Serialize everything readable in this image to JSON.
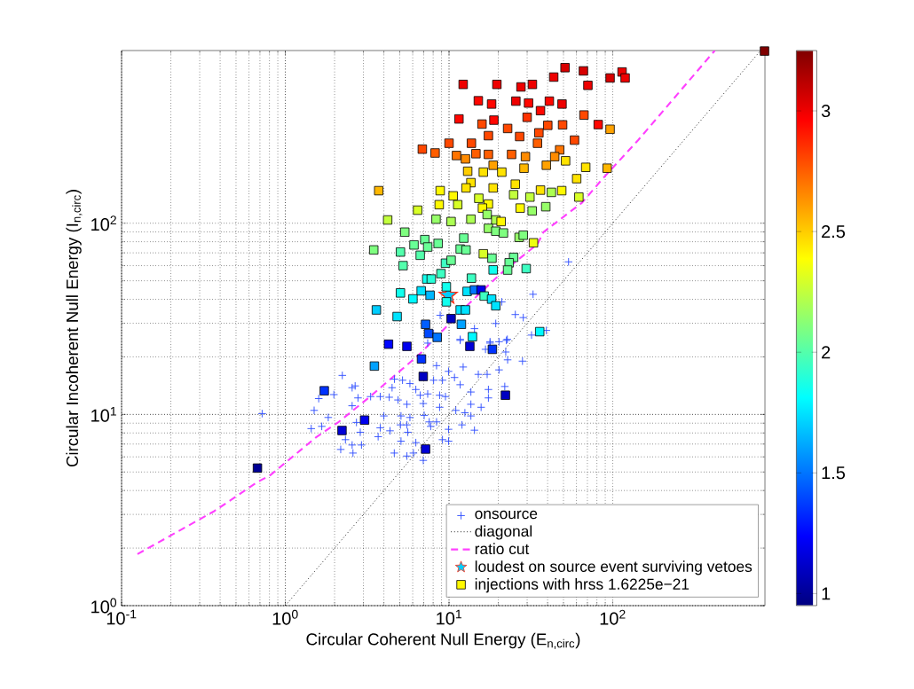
{
  "chart_data": {
    "type": "scatter",
    "xlabel": "Circular Coherent Null Energy (E$_{n,circ}$)",
    "ylabel": "Circular Incoherent Null Energy (I$_{n,circ}$)",
    "log": "xy",
    "xlim": [
      0.1,
      850
    ],
    "ylim": [
      1,
      800
    ],
    "xticks": [
      {
        "value": 0.1,
        "label": "10$^{-1}$"
      },
      {
        "value": 1,
        "label": "10$^{0}$"
      },
      {
        "value": 10,
        "label": "10$^{1}$"
      },
      {
        "value": 100,
        "label": "10$^{2}$"
      }
    ],
    "yticks": [
      {
        "value": 1,
        "label": "10$^{0}$"
      },
      {
        "value": 10,
        "label": "10$^{1}$"
      },
      {
        "value": 100,
        "label": "10$^{2}$"
      }
    ],
    "clim": [
      0.95,
      3.25
    ],
    "cticks": [
      1,
      1.5,
      2,
      2.5,
      3
    ],
    "grid": true,
    "legend": "bottom right",
    "series": [
      {
        "name": "onsource",
        "marker": "cross",
        "color": "#3050ff",
        "x": [
          2.23,
          2.67,
          2.56,
          1.98,
          1.6,
          2.78,
          1.5,
          2.56,
          3.32,
          3.8,
          4.31,
          1.83,
          1.44,
          1.67,
          0.722,
          2.72,
          2.87,
          2.33,
          2.56,
          2.18,
          2.59,
          2.92,
          3.69,
          3.8,
          4.0,
          4.36,
          4.63,
          5.09,
          4.49,
          4.64,
          5.2,
          5.77,
          6.27,
          4.88,
          5.53,
          5.09,
          5.77,
          5.05,
          5.53,
          5.6,
          6.27,
          6.06,
          7.05,
          6.96,
          6.67,
          7.41,
          8.05,
          9.12,
          8.39,
          9.93,
          10.8,
          11.7,
          8.76,
          9.51,
          8.76,
          8.39,
          7.57,
          7.73,
          9.93,
          9.12,
          9.93,
          11.0,
          12.5,
          13.6,
          12.0,
          13.6,
          15.7,
          13.6,
          17.4,
          17.4,
          15.1,
          17.1,
          21.9,
          28.1,
          22.8,
          20.2,
          17.8,
          22.4,
          11.7,
          12.2,
          6.96,
          14.3,
          5.53,
          53.7,
          32.6,
          21.0,
          25.4,
          28.4,
          19.3,
          14.3,
          11.7,
          17.8,
          22.7,
          31.9,
          39.3,
          22.2,
          8.83,
          8.05,
          7.41,
          16.7,
          20.2
        ],
        "values": [
          16.0,
          14.1,
          13.8,
          12.7,
          12.1,
          12.2,
          10.5,
          11.1,
          12.4,
          12.4,
          12.3,
          9.64,
          8.43,
          8.66,
          10.1,
          9.08,
          8.07,
          7.38,
          6.92,
          6.56,
          6.28,
          6.92,
          7.65,
          8.51,
          9.82,
          8.21,
          6.28,
          7.25,
          13.8,
          15.3,
          15.1,
          14.5,
          13.5,
          11.9,
          11.3,
          9.82,
          9.64,
          8.82,
          8.82,
          8.07,
          7.12,
          6.28,
          9.89,
          11.4,
          12.6,
          12.8,
          15.1,
          15.1,
          18.0,
          16.8,
          15.6,
          14.3,
          12.6,
          12.4,
          10.9,
          9.14,
          9.14,
          8.66,
          8.36,
          7.38,
          7.25,
          10.5,
          10.2,
          9.82,
          8.82,
          11.3,
          10.9,
          13.1,
          13.5,
          12.2,
          16.2,
          16.2,
          14.0,
          19.0,
          19.3,
          24.0,
          23.6,
          24.4,
          24.4,
          17.7,
          5.75,
          8.27,
          6.06,
          62.8,
          42.5,
          38.8,
          33.3,
          32.1,
          29.9,
          28.1,
          24.7,
          24.0,
          24.7,
          26.0,
          27.5,
          21.2,
          33.0,
          26.5,
          23.6,
          21.9,
          17.1
        ]
      },
      {
        "name": "diagonal",
        "type": "line",
        "line_style": "dotted",
        "color": "#000000",
        "x": [
          1,
          800
        ],
        "values": [
          1,
          800
        ]
      },
      {
        "name": "ratio cut",
        "type": "line",
        "line_style": "dashed",
        "color": "#ff40ff",
        "x": [
          0.125,
          0.368,
          0.673,
          0.81,
          1.55,
          2.12,
          3.22,
          5.77,
          6.82,
          12.2,
          20.2,
          34.7,
          37.7,
          64.9,
          86.8,
          143,
          420
        ],
        "values": [
          1.86,
          3.12,
          4.42,
          4.81,
          7.62,
          9.14,
          12.2,
          18.7,
          21.2,
          35.5,
          53.5,
          77.8,
          89.8,
          128,
          171,
          272,
          800
        ]
      },
      {
        "name": "loudest on source event surviving vetoes",
        "marker": "star",
        "color": "#ff2a10",
        "x": [
          9.88
        ],
        "values": [
          42.0
        ],
        "cvalues": [
          1.7
        ]
      },
      {
        "name": "injections with hrss 1.6225e−21",
        "marker": "square",
        "color": "#000000",
        "x": [
          48.8,
          12.2,
          19.6,
          27.5,
          32.3,
          51.1,
          43.6,
          66.2,
          114,
          96.3,
          119,
          70.5,
          15.1,
          18.2,
          25.6,
          30.6,
          41.0,
          49.0,
          11.5,
          18.8,
          30.0,
          36.2,
          66.7,
          81.5,
          96.3,
          6.87,
          10.0,
          15.9,
          22.8,
          40.1,
          49.4,
          8.22,
          13.7,
          17.4,
          27.0,
          35.4,
          58.4,
          11.1,
          14.6,
          17.4,
          24.1,
          34.7,
          47.4,
          12.6,
          18.6,
          29.3,
          44.2,
          3.72,
          13.0,
          16.2,
          21.0,
          28.7,
          39.3,
          51.5,
          68.4,
          92.4,
          60.2,
          13.6,
          18.6,
          12.7,
          25.4,
          36.2,
          8.83,
          10.6,
          24.8,
          31.2,
          42.2,
          62.1,
          8.71,
          11.3,
          15.2,
          17.4,
          6.43,
          16.0,
          27.2,
          32.2,
          39.0,
          4.22,
          8.33,
          10.3,
          13.6,
          17.1,
          19.3,
          20.8,
          5.37,
          7.11,
          17.4,
          19.3,
          21.5,
          12.3,
          26.8,
          32.8,
          6.11,
          3.47,
          5.05,
          6.67,
          7.41,
          8.58,
          11.7,
          12.7,
          16.2,
          18.3,
          24.8,
          23.3,
          28.4,
          5.24,
          9.51,
          10.3,
          22.8,
          29.6,
          18.6,
          8.93,
          7.31,
          7.79,
          13.7,
          9.63,
          5.05,
          6.76,
          7.66,
          6.02,
          9.63,
          12.9,
          14.3,
          15.7,
          16.4,
          18.2,
          19.3,
          3.6,
          4.82,
          11.7,
          12.6,
          10.3,
          7.19,
          11.9,
          7.5,
          8.47,
          13.9,
          35.8,
          4.27,
          5.53,
          13.4,
          18.4,
          6.79,
          3.5,
          6.96,
          22.1,
          1.73,
          3.05,
          2.22,
          7.19,
          0.676,
          845
        ],
        "values": [
          148,
          532,
          532,
          516,
          532,
          651,
          581,
          626,
          618,
          575,
          575,
          526,
          437,
          420,
          435,
          425,
          435,
          420,
          351,
          346,
          358,
          388,
          368,
          328,
          310,
          244,
          262,
          330,
          313,
          325,
          327,
          233,
          262,
          287,
          284,
          297,
          272,
          226,
          231,
          229,
          229,
          262,
          242,
          217,
          201,
          223,
          223,
          148,
          187,
          185,
          185,
          194,
          201,
          212,
          196,
          194,
          171,
          163,
          153,
          153,
          160,
          149,
          148,
          139,
          141,
          137,
          145,
          137,
          125,
          125,
          135,
          126,
          117,
          120,
          120,
          116,
          122,
          104,
          105,
          102,
          105,
          111,
          104,
          102,
          89.8,
          82.1,
          94.0,
          90.8,
          88.9,
          83.6,
          84.3,
          79.0,
          77.0,
          72.5,
          70.7,
          68.0,
          75.1,
          78.4,
          73.3,
          72.5,
          69.2,
          65.6,
          66.3,
          62.1,
          86.6,
          60.0,
          61.8,
          64.0,
          56.9,
          57.9,
          57.0,
          54.5,
          51.1,
          51.1,
          51.6,
          46.5,
          43.2,
          44.3,
          42.0,
          40.2,
          38.8,
          44.0,
          44.8,
          44.8,
          41.6,
          40.1,
          37.0,
          35.2,
          32.5,
          35.2,
          35.2,
          31.7,
          29.6,
          29.6,
          26.5,
          25.3,
          25.5,
          27.1,
          23.3,
          22.7,
          22.7,
          21.9,
          19.5,
          17.9,
          15.8,
          12.6,
          13.3,
          9.34,
          8.24,
          6.59,
          5.24,
          795
        ],
        "cvalues": [
          2.4,
          3.0,
          3.0,
          3.0,
          3.0,
          3.05,
          3.0,
          3.05,
          3.0,
          3.05,
          3.0,
          3.0,
          2.95,
          2.95,
          3.0,
          2.95,
          2.95,
          3.0,
          2.95,
          2.95,
          2.85,
          2.95,
          2.8,
          2.95,
          2.6,
          2.8,
          2.8,
          2.8,
          2.8,
          2.8,
          2.8,
          2.75,
          2.8,
          2.8,
          2.8,
          2.8,
          2.8,
          2.7,
          2.75,
          2.75,
          2.75,
          2.75,
          2.7,
          2.65,
          2.6,
          2.65,
          2.65,
          2.55,
          2.5,
          2.45,
          2.45,
          2.55,
          2.6,
          2.45,
          2.45,
          2.55,
          2.45,
          2.45,
          2.45,
          2.45,
          2.45,
          2.45,
          2.4,
          2.4,
          2.25,
          2.25,
          2.2,
          2.3,
          2.4,
          2.3,
          2.3,
          2.4,
          2.3,
          2.4,
          2.4,
          2.15,
          2.15,
          2.25,
          2.15,
          2.2,
          2.2,
          2.15,
          2.2,
          2.4,
          2.1,
          2.05,
          2.15,
          2.1,
          2.1,
          2.05,
          2.15,
          2.35,
          2.05,
          2.1,
          2.0,
          2.0,
          2.05,
          2.05,
          2.05,
          2.05,
          2.3,
          2.05,
          2.05,
          2.05,
          2.1,
          2.0,
          1.95,
          2.05,
          2.05,
          1.95,
          1.85,
          1.95,
          1.85,
          1.9,
          1.95,
          1.85,
          1.85,
          1.75,
          1.65,
          1.8,
          1.85,
          1.75,
          1.5,
          1.2,
          1.95,
          1.75,
          1.75,
          1.7,
          1.75,
          1.75,
          1.75,
          1.1,
          1.45,
          1.6,
          1.4,
          1.5,
          1.8,
          1.8,
          1.25,
          1.2,
          1.15,
          1.35,
          1.35,
          1.6,
          1.1,
          1.1,
          1.35,
          1.2,
          1.15,
          1.15,
          1.0,
          3.25
        ]
      }
    ]
  }
}
